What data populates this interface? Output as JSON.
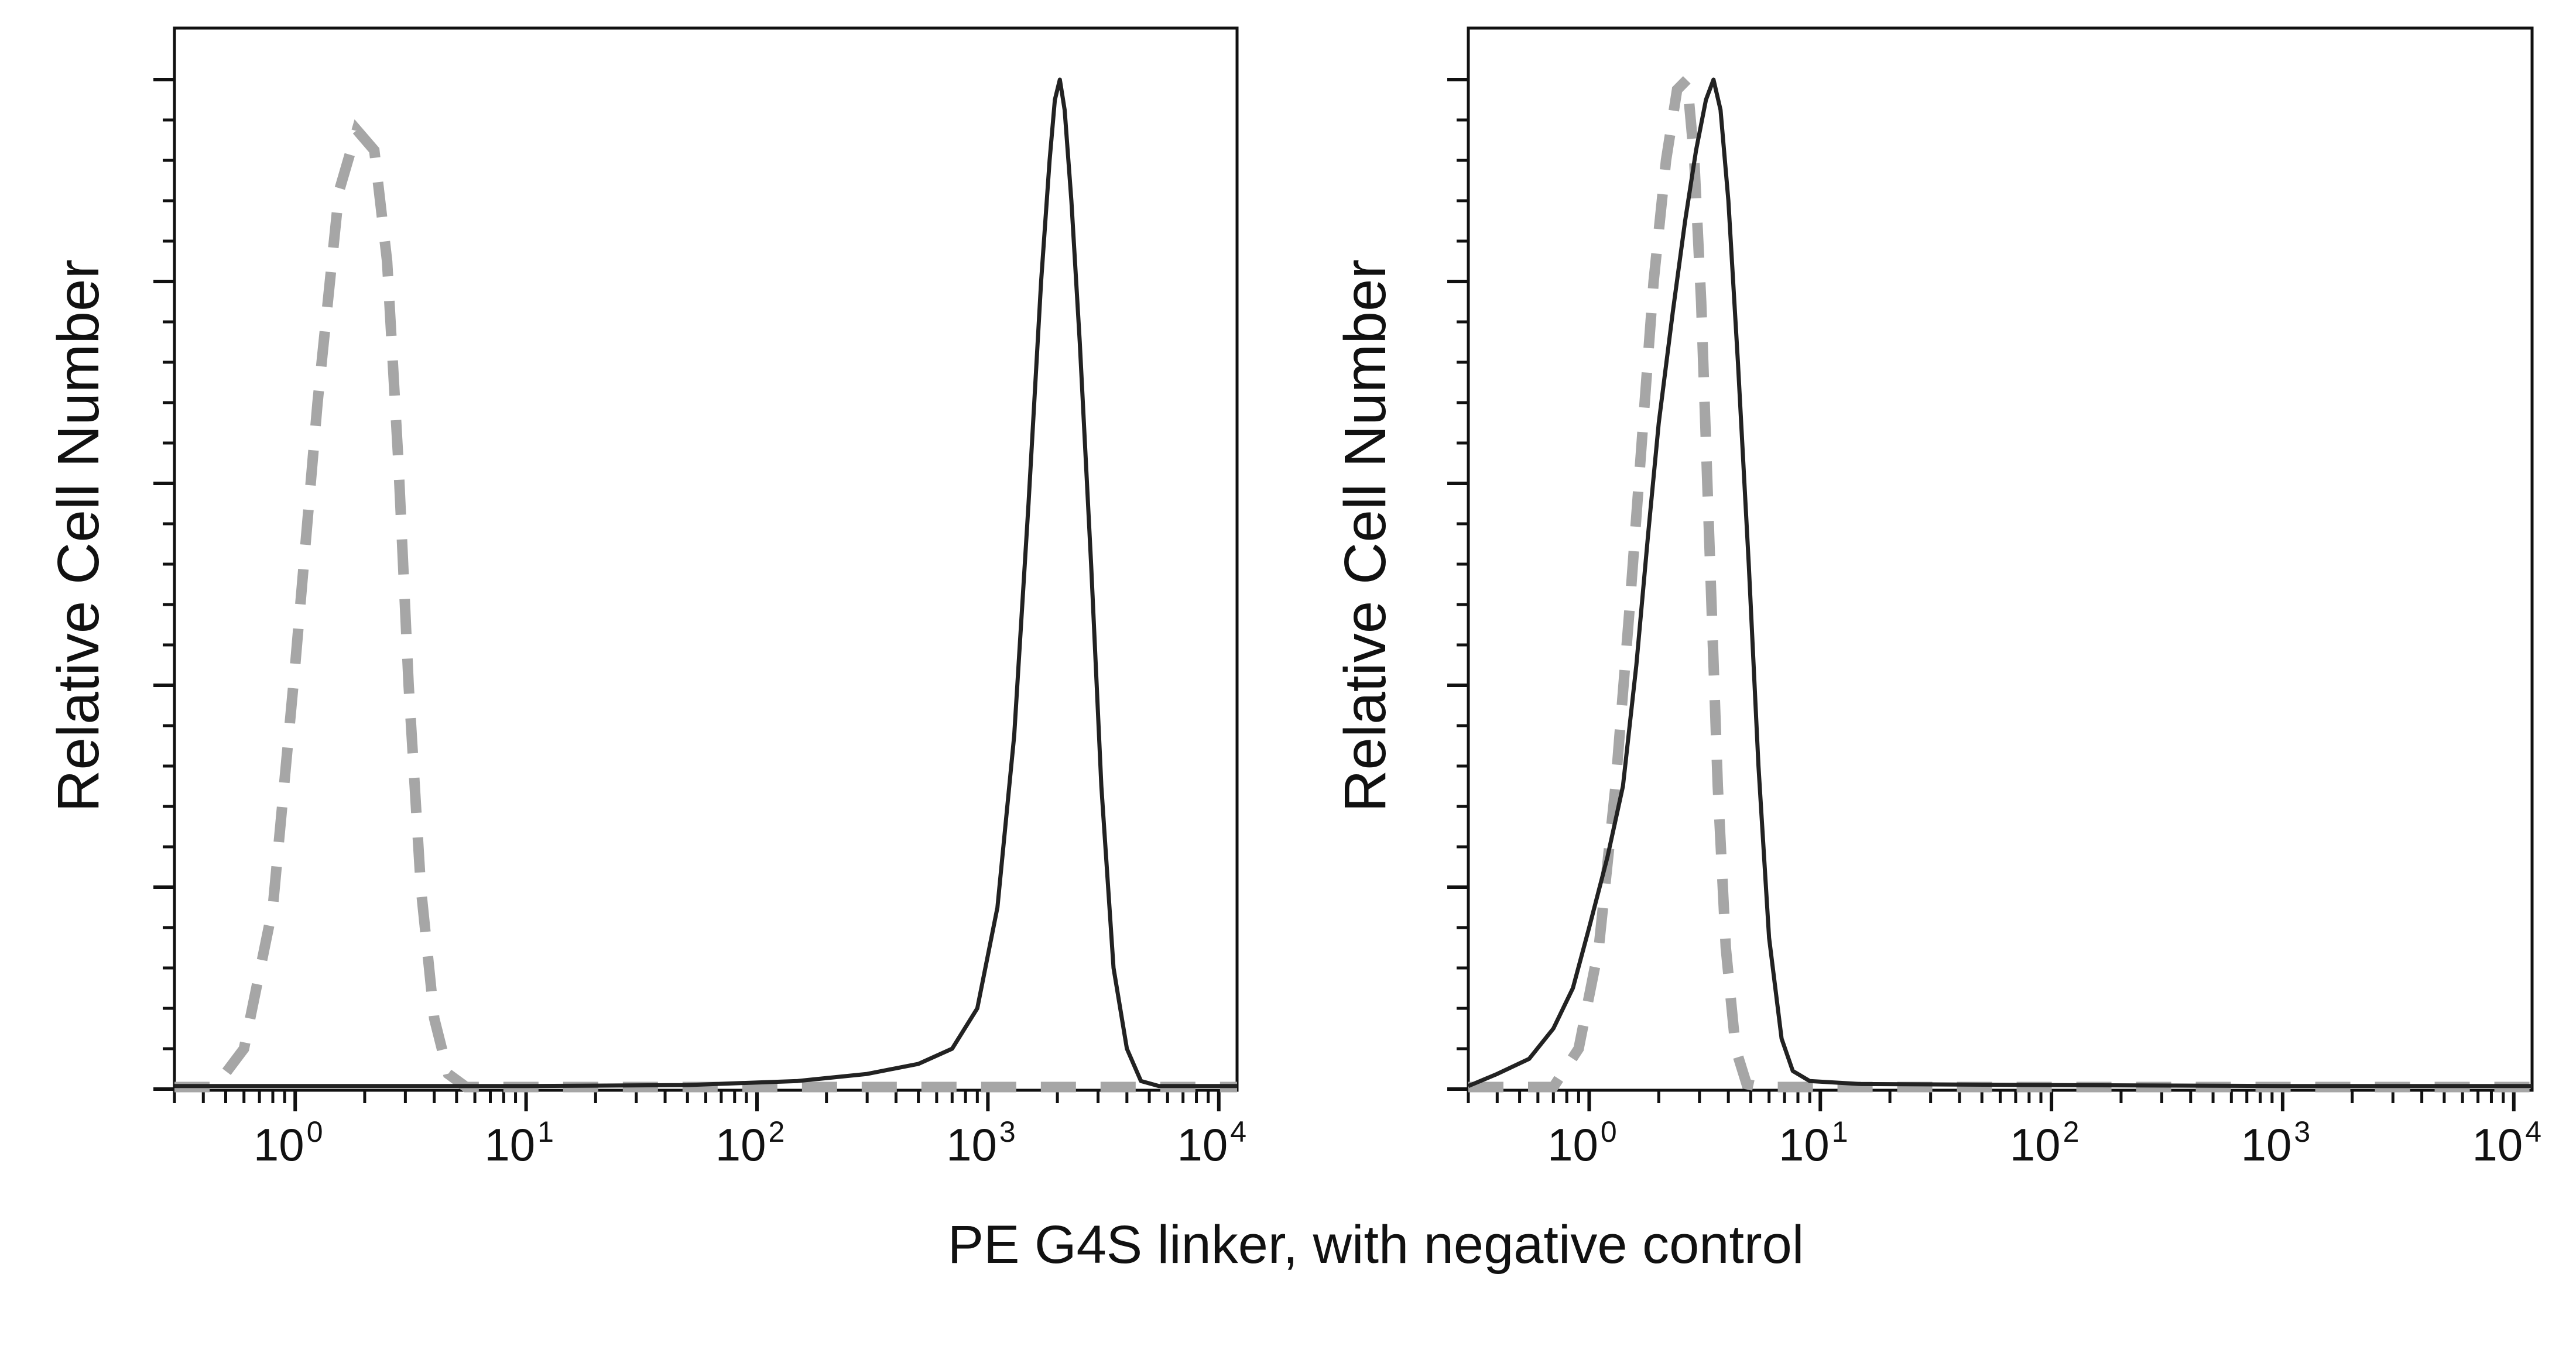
{
  "figure_caption": "PE G4S linker, with negative control",
  "chart_data": [
    {
      "type": "line",
      "panel": "left",
      "xscale": "log",
      "xlabel": "PE G4S linker, with negative control",
      "ylabel": "Relative Cell Number",
      "x_tick_labels": [
        {
          "base": "10",
          "exp": "0",
          "value": 1
        },
        {
          "base": "10",
          "exp": "1",
          "value": 10
        },
        {
          "base": "10",
          "exp": "2",
          "value": 100
        },
        {
          "base": "10",
          "exp": "3",
          "value": 1000
        },
        {
          "base": "10",
          "exp": "4",
          "value": 10000
        }
      ],
      "xlim": [
        0.3,
        12000
      ],
      "ylim": [
        0,
        100
      ],
      "y_major_ticks": [
        0,
        20,
        40,
        60,
        80,
        100
      ],
      "series": [
        {
          "name": "PE G4S linker",
          "style": "solid",
          "color": "#222222",
          "points": [
            [
              0.3,
              0.3
            ],
            [
              1,
              0.3
            ],
            [
              10,
              0.3
            ],
            [
              50,
              0.4
            ],
            [
              150,
              0.8
            ],
            [
              300,
              1.5
            ],
            [
              500,
              2.5
            ],
            [
              700,
              4
            ],
            [
              900,
              8
            ],
            [
              1100,
              18
            ],
            [
              1300,
              35
            ],
            [
              1500,
              58
            ],
            [
              1700,
              80
            ],
            [
              1850,
              92
            ],
            [
              1950,
              98
            ],
            [
              2050,
              100
            ],
            [
              2150,
              97
            ],
            [
              2300,
              88
            ],
            [
              2500,
              74
            ],
            [
              2800,
              52
            ],
            [
              3100,
              30
            ],
            [
              3500,
              12
            ],
            [
              4000,
              4
            ],
            [
              4600,
              0.8
            ],
            [
              5500,
              0.3
            ],
            [
              12000,
              0.3
            ]
          ]
        },
        {
          "name": "negative control",
          "style": "dashed",
          "color": "#a6a6a6",
          "points": [
            [
              0.3,
              0.2
            ],
            [
              0.45,
              0.2
            ],
            [
              0.6,
              4
            ],
            [
              0.8,
              18
            ],
            [
              1.0,
              42
            ],
            [
              1.25,
              68
            ],
            [
              1.55,
              89
            ],
            [
              1.85,
              95
            ],
            [
              2.2,
              93
            ],
            [
              2.5,
              82
            ],
            [
              2.8,
              62
            ],
            [
              3.1,
              40
            ],
            [
              3.5,
              20
            ],
            [
              4.0,
              7
            ],
            [
              4.6,
              1.5
            ],
            [
              5.5,
              0.2
            ],
            [
              12000,
              0.2
            ]
          ]
        }
      ]
    },
    {
      "type": "line",
      "panel": "right",
      "xscale": "log",
      "xlabel": "PE G4S linker, with negative control",
      "ylabel": "Relative Cell Number",
      "x_tick_labels": [
        {
          "base": "10",
          "exp": "0",
          "value": 1
        },
        {
          "base": "10",
          "exp": "1",
          "value": 10
        },
        {
          "base": "10",
          "exp": "2",
          "value": 100
        },
        {
          "base": "10",
          "exp": "3",
          "value": 1000
        },
        {
          "base": "10",
          "exp": "4",
          "value": 10000
        }
      ],
      "xlim": [
        0.3,
        12000
      ],
      "ylim": [
        0,
        100
      ],
      "y_major_ticks": [
        0,
        20,
        40,
        60,
        80,
        100
      ],
      "series": [
        {
          "name": "PE G4S linker",
          "style": "solid",
          "color": "#222222",
          "points": [
            [
              0.3,
              0.3
            ],
            [
              0.4,
              1.5
            ],
            [
              0.55,
              3
            ],
            [
              0.7,
              6
            ],
            [
              0.85,
              10
            ],
            [
              1.0,
              16
            ],
            [
              1.2,
              23
            ],
            [
              1.4,
              30
            ],
            [
              1.6,
              42
            ],
            [
              1.8,
              55
            ],
            [
              2.0,
              66
            ],
            [
              2.3,
              77
            ],
            [
              2.6,
              86
            ],
            [
              2.9,
              93
            ],
            [
              3.2,
              98
            ],
            [
              3.45,
              100
            ],
            [
              3.7,
              97
            ],
            [
              4.0,
              88
            ],
            [
              4.4,
              72
            ],
            [
              4.9,
              52
            ],
            [
              5.4,
              32
            ],
            [
              6.0,
              15
            ],
            [
              6.8,
              5
            ],
            [
              7.6,
              1.8
            ],
            [
              9,
              0.8
            ],
            [
              15,
              0.5
            ],
            [
              100,
              0.4
            ],
            [
              1000,
              0.3
            ],
            [
              12000,
              0.3
            ]
          ]
        },
        {
          "name": "negative control",
          "style": "dashed",
          "color": "#a6a6a6",
          "points": [
            [
              0.3,
              0.2
            ],
            [
              0.7,
              0.2
            ],
            [
              0.9,
              4
            ],
            [
              1.1,
              14
            ],
            [
              1.3,
              30
            ],
            [
              1.5,
              48
            ],
            [
              1.7,
              65
            ],
            [
              1.9,
              80
            ],
            [
              2.15,
              92
            ],
            [
              2.4,
              99
            ],
            [
              2.65,
              100
            ],
            [
              2.85,
              92
            ],
            [
              3.05,
              78
            ],
            [
              3.3,
              55
            ],
            [
              3.6,
              30
            ],
            [
              3.9,
              14
            ],
            [
              4.3,
              4
            ],
            [
              4.8,
              0.5
            ],
            [
              5.5,
              0.2
            ],
            [
              12000,
              0.2
            ]
          ]
        }
      ]
    }
  ]
}
